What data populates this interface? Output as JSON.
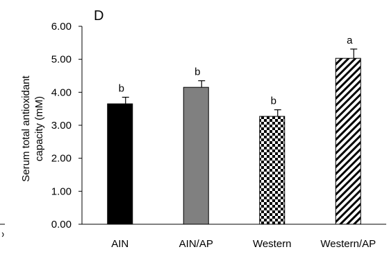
{
  "chart_data": {
    "type": "bar",
    "panel_label": "D",
    "ylabel_lines": [
      "Serum total antioxidant",
      "capacity (mM)"
    ],
    "ylim": [
      0,
      6
    ],
    "yticks": [
      "0.00",
      "1.00",
      "2.00",
      "3.00",
      "4.00",
      "5.00",
      "6.00"
    ],
    "categories": [
      "AIN",
      "AIN/AP",
      "Western",
      "Western/AP"
    ],
    "values": [
      3.65,
      4.15,
      3.27,
      5.03
    ],
    "errors": [
      0.2,
      0.2,
      0.2,
      0.28
    ],
    "significance": [
      "b",
      "b",
      "b",
      "a"
    ],
    "fills": [
      "solid-black",
      "solid-gray",
      "checkerboard",
      "diagonal-hatch"
    ],
    "colors": {
      "black": "#000000",
      "gray": "#808080"
    },
    "grid": false,
    "legend": "none"
  }
}
